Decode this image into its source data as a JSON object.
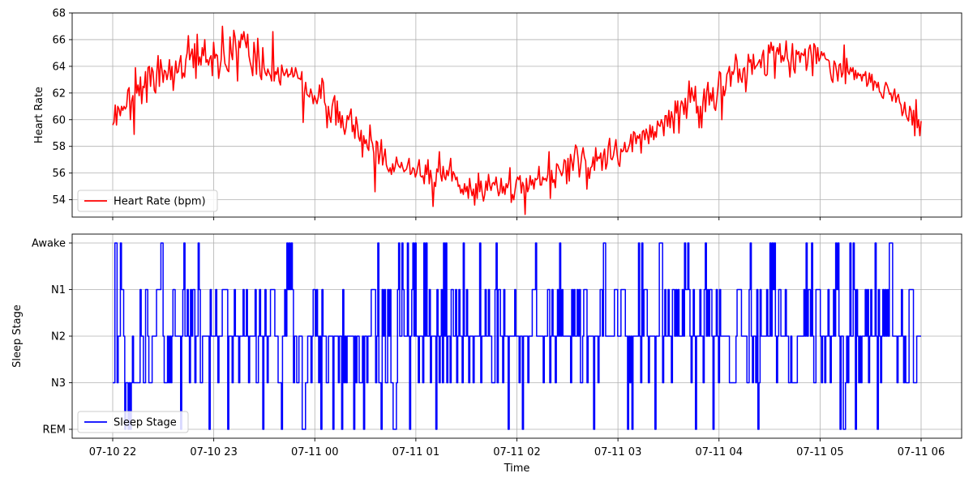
{
  "chart_data": [
    {
      "type": "line",
      "xlabel": "",
      "ylabel": "Heart Rate",
      "ylim": [
        52.7,
        68
      ],
      "y_ticks": [
        54,
        56,
        58,
        60,
        62,
        64,
        66,
        68
      ],
      "x_ticks": [
        "07-10 22",
        "07-10 23",
        "07-11 00",
        "07-11 01",
        "07-11 02",
        "07-11 03",
        "07-11 04",
        "07-11 05",
        "07-11 06"
      ],
      "grid": true,
      "legend": "bottom-left",
      "series": [
        {
          "name": "Heart Rate (bpm)",
          "color": "#ff0000",
          "x_start": "07-10 22",
          "x_end": "07-11 06",
          "interval_minutes": 2,
          "values": [
            59.6,
            59.8,
            61.1,
            59.6,
            61.0,
            60.8,
            60.3,
            61.0,
            60.7,
            61.0,
            60.8,
            61.0,
            62.2,
            62.4,
            60.0,
            61.4,
            61.8,
            58.9,
            63.9,
            62.0,
            62.6,
            61.8,
            63.2,
            61.2,
            62.5,
            62.4,
            63.6,
            61.3,
            63.9,
            64.0,
            62.5,
            63.9,
            63.6,
            62.2,
            62.0,
            63.6,
            64.8,
            62.5,
            64.5,
            63.8,
            62.8,
            63.7,
            63.6,
            63.0,
            63.5,
            64.5,
            63.0,
            64.0,
            62.2,
            63.2,
            64.4,
            63.5,
            63.6,
            64.3,
            64.8,
            63.1,
            63.5,
            63.2,
            64.5,
            65.0,
            66.3,
            64.5,
            64.9,
            65.3,
            63.9,
            65.7,
            63.1,
            66.4,
            64.1,
            64.7,
            64.1,
            65.4,
            64.8,
            66.0,
            64.3,
            64.5,
            64.1,
            64.6,
            64.8,
            63.3,
            65.8,
            64.6,
            64.9,
            64.8,
            63.1,
            63.8,
            64.5,
            67.0,
            65.2,
            64.2,
            64.0,
            63.7,
            63.6,
            66.2,
            65.0,
            64.5,
            66.7,
            66.2,
            65.1,
            62.9,
            65.9,
            65.4,
            66.4,
            66.0,
            66.6,
            65.9,
            65.4,
            66.4,
            64.8,
            64.3,
            63.9,
            63.3,
            65.8,
            64.9,
            63.4,
            66.1,
            64.6,
            63.3,
            63.0,
            65.4,
            63.9,
            63.5,
            63.3,
            63.8,
            63.5,
            63.3,
            62.9,
            66.6,
            62.9,
            63.6,
            63.4,
            63.9,
            62.9,
            62.6,
            64.1,
            63.6,
            63.3,
            63.5,
            63.8,
            63.2,
            63.4,
            63.4,
            63.9,
            63.2,
            63.3,
            63.9,
            63.5,
            63.1,
            63.1,
            63.0,
            63.6,
            59.8,
            62.0,
            62.8,
            61.9,
            61.8,
            61.7,
            62.3,
            61.9,
            61.2,
            61.8,
            61.5,
            61.2,
            61.7,
            62.6,
            61.6,
            63.1,
            62.8,
            61.3,
            61.0,
            59.4,
            61.0,
            60.2,
            59.8,
            61.0,
            61.5,
            61.8,
            59.6,
            61.4,
            59.8,
            60.6,
            59.4,
            60.3,
            59.4,
            58.9,
            59.4,
            60.3,
            60.0,
            60.4,
            60.8,
            59.1,
            59.6,
            58.6,
            60.2,
            59.6,
            58.7,
            58.4,
            59.2,
            57.2,
            58.8,
            58.2,
            58.5,
            57.9,
            57.7,
            59.6,
            58.5,
            58.2,
            57.5,
            54.6,
            58.4,
            58.3,
            56.7,
            57.5,
            58.5,
            56.6,
            57.2,
            57.8,
            56.6,
            56.3,
            56.1,
            56.4,
            55.9,
            56.7,
            56.1,
            56.5,
            57.2,
            56.7,
            56.5,
            56.4,
            56.8,
            56.4,
            56.1,
            56.2,
            56.3,
            56.7,
            57.1,
            55.9,
            56.0,
            56.4,
            56.3,
            55.7,
            56.0,
            56.5,
            57.0,
            55.8,
            55.7,
            55.8,
            55.2,
            56.6,
            55.9,
            57.0,
            55.2,
            56.2,
            55.5,
            53.5,
            55.3,
            55.0,
            56.3,
            56.1,
            57.6,
            55.9,
            55.4,
            56.5,
            55.7,
            55.5,
            56.2,
            55.8,
            56.4,
            57.1,
            55.4,
            56.1,
            55.9,
            55.5,
            55.7,
            55.0,
            55.1,
            54.5,
            54.8,
            54.4,
            55.2,
            54.6,
            55.0,
            54.1,
            55.6,
            54.8,
            54.3,
            54.8,
            53.6,
            55.2,
            54.1,
            56.0,
            54.6,
            55.4,
            54.5,
            53.9,
            54.4,
            55.4,
            54.7,
            55.9,
            55.1,
            54.7,
            55.2,
            55.3,
            55.1,
            55.7,
            54.9,
            54.3,
            54.6,
            55.6,
            54.5,
            55.0,
            54.4,
            55.2,
            54.9,
            55.3,
            56.4,
            53.8,
            54.4,
            54.0,
            54.7,
            55.4,
            55.7,
            55.5,
            55.8,
            54.5,
            55.3,
            55.0,
            52.9,
            55.6,
            54.6,
            54.9,
            55.8,
            55.1,
            55.5,
            54.8,
            55.6,
            55.5,
            55.6,
            56.5,
            55.1,
            55.1,
            55.7,
            55.5,
            55.6,
            55.4,
            55.9,
            57.6,
            54.1,
            56.2,
            55.3,
            55.5,
            54.9,
            56.7,
            56.6,
            56.3,
            56.1,
            55.8,
            56.1,
            57.0,
            56.9,
            55.2,
            57.1,
            55.4,
            57.4,
            56.9,
            56.2,
            57.3,
            58.1,
            57.9,
            57.1,
            55.7,
            56.5,
            57.4,
            57.9,
            57.2,
            56.9,
            54.8,
            56.4,
            55.6,
            56.4,
            56.5,
            57.2,
            56.2,
            57.9,
            56.9,
            57.2,
            57.1,
            57.5,
            56.2,
            57.3,
            57.8,
            56.3,
            56.7,
            58.0,
            58.6,
            57.1,
            57.0,
            57.3,
            57.9,
            58.5,
            57.4,
            56.7,
            56.5,
            57.8,
            57.6,
            57.7,
            58.3,
            57.6,
            57.6,
            57.9,
            58.2,
            58.9,
            57.6,
            59.1,
            59.0,
            58.2,
            58.8,
            58.6,
            58.9,
            57.5,
            59.1,
            59.2,
            58.5,
            59.3,
            58.9,
            58.2,
            59.6,
            58.7,
            59.5,
            58.5,
            59.1,
            58.7,
            59.9,
            59.6,
            59.5,
            60.0,
            59.7,
            58.8,
            60.3,
            60.3,
            59.5,
            60.7,
            59.4,
            60.6,
            60.1,
            59.0,
            61.4,
            60.5,
            61.4,
            59.0,
            60.9,
            61.4,
            61.2,
            60.4,
            61.6,
            60.1,
            61.3,
            62.9,
            61.3,
            62.4,
            61.8,
            61.4,
            62.5,
            60.5,
            61.0,
            59.4,
            61.0,
            59.4,
            61.3,
            62.3,
            60.6,
            62.1,
            62.8,
            61.1,
            62.0,
            61.4,
            62.4,
            60.9,
            60.7,
            61.5,
            62.5,
            63.6,
            63.5,
            60.0,
            62.5,
            61.8,
            62.3,
            63.4,
            63.6,
            64.0,
            62.5,
            63.6,
            63.4,
            63.8,
            64.9,
            64.4,
            62.8,
            63.8,
            63.1,
            62.8,
            63.8,
            63.9,
            62.1,
            63.2,
            64.9,
            64.3,
            64.5,
            63.4,
            64.9,
            63.8,
            64.0,
            64.1,
            64.3,
            64.5,
            63.9,
            64.8,
            65.2,
            63.4,
            63.3,
            63.4,
            65.6,
            65.0,
            65.8,
            65.2,
            65.5,
            63.1,
            65.0,
            65.4,
            64.9,
            65.7,
            64.3,
            64.8,
            64.4,
            64.8,
            65.9,
            64.6,
            64.3,
            63.2,
            64.5,
            65.7,
            63.8,
            63.5,
            65.2,
            64.9,
            65.1,
            64.3,
            65.0,
            64.9,
            64.8,
            65.3,
            63.7,
            64.2,
            65.3,
            65.6,
            64.8,
            63.3,
            65.7,
            65.5,
            64.2,
            65.4,
            64.4,
            64.6,
            65.1,
            64.8,
            65.0,
            64.6,
            64.5,
            64.5,
            64.4,
            63.6,
            63.0,
            62.8,
            64.4,
            64.2,
            63.6,
            62.9,
            64.1,
            64.2,
            63.2,
            63.5,
            65.6,
            62.7,
            64.6,
            63.6,
            63.4,
            63.9,
            63.6,
            63.9,
            63.0,
            63.7,
            63.1,
            63.5,
            63.3,
            63.4,
            62.9,
            63.4,
            63.3,
            63.6,
            62.5,
            62.7,
            63.5,
            62.8,
            63.4,
            62.2,
            62.9,
            62.8,
            62.4,
            62.8,
            62.1,
            62.0,
            61.7,
            61.6,
            62.4,
            62.8,
            62.6,
            62.3,
            61.9,
            62.0,
            61.4,
            61.9,
            62.3,
            61.3,
            61.7,
            61.9,
            61.3,
            61.1,
            60.3,
            60.6,
            61.3,
            60.4,
            60.1,
            59.9,
            61.0,
            60.7,
            59.6,
            60.7,
            58.8,
            61.5,
            59.4,
            60.0,
            58.8,
            59.9
          ]
        }
      ]
    },
    {
      "type": "line",
      "step": true,
      "xlabel": "Time",
      "ylabel": "Sleep Stage",
      "y_categories": [
        "REM",
        "N3",
        "N2",
        "N1",
        "Awake"
      ],
      "x_ticks": [
        "07-10 22",
        "07-10 23",
        "07-11 00",
        "07-11 01",
        "07-11 02",
        "07-11 03",
        "07-11 04",
        "07-11 05",
        "07-11 06"
      ],
      "grid": true,
      "legend": "bottom-left",
      "series": [
        {
          "name": "Sleep Stage",
          "color": "#0000ff",
          "x_start": "07-10 22",
          "x_end": "07-11 06",
          "interval_minutes": 1,
          "values": "N3 N3 Aw Aw N3 N2 N2 Aw N1 N1 N2 REM N3 N3 REM N3 REM N3 N2 N3 N3 N3 N3 N3 N3 N1 N2 N2 N3 N3 N1 N1 N2 N3 N3 N3 N2 N2 N2 N2 N1 N1 N1 N1 Aw Aw N2 N3 N3 N3 N2 N3 N2 N3 N2 N1 N1 N2 N2 N2 N2 N2 REM N2 N1 Aw N2 N2 N1 N2 N3 N1 N2 N1 N1 N3 N2 N2 Aw N1 N3 N3 N2 N2 N2 N2 N2 N2 REM N1 N2 N2 N2 N2 N1 N2 N3 N2 N2 N2 N1 N1 N1 N1 N1 REM N2 N2 N2 N3 N2 N1 N2 N2 N2 N3 N2 N2 N2 N1 N2 N2 N1 N2 N3 N2 N2 N2 N2 N2 N1 N3 N3 N2 N1 N2 N2 REM N2 N1 N2 N3 N2 N2 N1 N1 N1 N1 N2 N2 N2 N3 N3 N3 REM N2 N2 N1 N2 Aw N1 Aw N1 Aw N1 N3 N2 N2 N3 N3 N2 N2 N2 REM REM REM N3 N3 N2 N2 N2 N3 N2 N1 N1 N2 N1 N2 N3 N2 REM N1 N2 N2 N2 N3 N3 N2 N2 N2 N2 REM N2 N2 N2 N2 N3 N2 N2 REM N1 N3 N2 N3 N2 N2 N2 N2 N2 N2 REM N2 N3 N2 N2 N3 N3 N3 N2 REM N2 N2 N3 N2 N2 N2 N1 N1 N1 N1 N3 N2 Aw N3 N3 REM N1 N2 N1 N3 N3 N1 N2 N1 N3 N3 REM REM REM N3 N1 Aw N2 N2 Aw N1 N2 N2 N2 Aw N2 REM N2 N1 Aw N2 Aw N2 N2 N3 N2 N2 N2 N3 Aw N2 Aw N2 N2 N1 N3 N2 N2 N2 N2 REM N1 N2 N3 N2 N1 N3 Aw N2 Aw N3 N2 N2 N3 N1 N1 N2 N2 N1 N3 N2 N1 N2 N2 N3 Aw N2 N2 N1 N2 N3 N2 N2 N2 N3 N2 N2 N2 N2 N2 Aw N3 N2 N2 N2 N1 N2 N2 N1 N2 N2 N3 N3 N3 N1 Aw N3 N1 N1 N2 N2 N3 N1 N2 N2 N2 REM N2 N2 N2 N2 N2 N1 N2 N2 N2 N3 N2 N2 REM N2 N2 N2 N2 N3 N2 N2 N2 N1 N1 N1 Aw N2 N2 N2 N2 N2 N2 N3 N2 N2 N2 N1 N1 N3 N2 N1 N2 N2 N3 N2 N1 N2 Aw N2 N1 N2 N2 N2 N2 N2 N2 N2 N3 N1 N2 N1 N2 N2 N1 N2 N1 N3 N3 N2 N1 N1 N1 N3 N2 N2 N2 N2 N2 REM N2 N2 N2 N3 N2 N1 N1 N2 Aw Aw N2 N2 N2 N2 N2 N2 N2 N2 N1 N1 N1 N2 N2 N2 N1 N1 N1 N1 N2 N2 REM N2 N3 N2 REM N2 N2 N2 N2 N2 Aw N2 N3 Aw N2 N1 N1 N1 N2 N3 N2 N2 N2 N2 N2 REM N2 N2 N2 Aw Aw Aw N3 N2 N1 N2 N2 N1 N2 N2 N3 N1 N1 N2 N1 N2 N1 N2 N2 N2 N1 N2 Aw N1 N1 Aw N1 N2 N3 N2 N1 N2 REM N2 N2 N2 N1 N2 N2 N3 N1 Aw N2 N1 N2 N1 N1 N2 REM N2 N2 N1 N2 N3 N1 N2 N2 N2 N2 N2 N2 N2 N2 N3 N3 N3 N3 N3 N3 N2 N1 N1 N1 N1 N2 N2 N2 N2 N2 N3 N3 N1 Aw N2 N3 N2 N2 N3 N1 REM N3 N1 N2 N2 N2 N2 N2 N1 N2 N2 Aw N2 Aw N1 Aw N2 N3 N2 N1 N1 N2 N2 N2 N2 N1 N2 N2 N3 N3 N2 N3 N3 N3 N3 N3 N2 N2 N2 N2 N2 N2 N1 N2 Aw N2 N1 N1 N2 Aw N2 N3 N3 N1 N1 N1 N1 N2 N3 N2 N2 N3 N2 N2 N1 N2 N3 N2 N2 N1 N2 Aw N1 Aw N2 REM N2 N2 REM REM N3 N2 N3 N2 Aw N2 N2 Aw N1 REM N1 N2 N3 N2 N3 N2 N2 N2 N1 N2 N1 N3 N2 N1 N2 N2 N2 Aw N2 REM N1 N2 N3 N2 N1 N2 N1 N2 N1 N2 Aw Aw Aw N2 N2 N2 N2 N3 N2 N2 N2 N1 N2 N3 N2 N3 N3 N3 N1 N1 N1 N1 N3 N3 N3 N2 N2 N2 N2 N2"
        }
      ]
    }
  ]
}
